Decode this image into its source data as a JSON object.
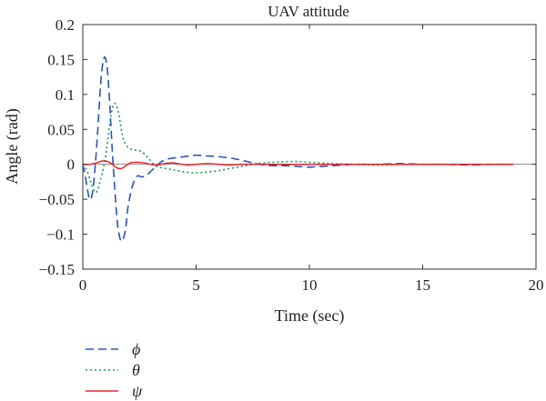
{
  "chart_data": {
    "type": "line",
    "title": "UAV attitude",
    "xlabel": "Time (sec)",
    "ylabel": "Angle (rad)",
    "xlim": [
      0,
      20
    ],
    "ylim": [
      -0.15,
      0.2
    ],
    "xticks": [
      0,
      5,
      10,
      15,
      20
    ],
    "xtick_labels": [
      "0",
      "5",
      "10",
      "15",
      "20"
    ],
    "yticks": [
      -0.15,
      -0.1,
      -0.05,
      0,
      0.05,
      0.1,
      0.15,
      0.2
    ],
    "ytick_labels": [
      "−0.15",
      "−0.1",
      "−0.05",
      "0",
      "0.05",
      "0.1",
      "0.15",
      "0.2"
    ],
    "grid": false,
    "legend_position": "below-left",
    "series": [
      {
        "name": "ϕ",
        "color": "#2a52be",
        "dash": "dashed",
        "x": [
          0,
          0.1,
          0.2,
          0.3,
          0.4,
          0.5,
          0.6,
          0.7,
          0.8,
          0.9,
          1.0,
          1.1,
          1.2,
          1.3,
          1.4,
          1.5,
          1.6,
          1.7,
          1.8,
          1.9,
          2.0,
          2.2,
          2.4,
          2.6,
          2.8,
          3.0,
          3.2,
          3.4,
          3.6,
          3.8,
          4.0,
          4.5,
          5.0,
          5.5,
          6.0,
          6.5,
          7.0,
          7.5,
          8.0,
          8.5,
          9.0,
          9.5,
          10.0,
          10.5,
          11.0,
          11.5,
          12.0,
          13.0,
          14.0,
          15.0,
          16.0,
          17.0,
          18.0,
          19.0
        ],
        "y": [
          0,
          -0.015,
          -0.035,
          -0.05,
          -0.045,
          -0.02,
          0.02,
          0.07,
          0.12,
          0.148,
          0.152,
          0.13,
          0.08,
          0.02,
          -0.03,
          -0.075,
          -0.1,
          -0.11,
          -0.105,
          -0.09,
          -0.06,
          -0.03,
          -0.017,
          -0.018,
          -0.016,
          -0.01,
          -0.004,
          0.002,
          0.006,
          0.008,
          0.009,
          0.011,
          0.013,
          0.012,
          0.011,
          0.009,
          0.006,
          0.002,
          -0.001,
          -0.002,
          -0.002,
          -0.003,
          -0.004,
          -0.003,
          -0.002,
          -0.001,
          0,
          0,
          0.001,
          0,
          0,
          -0.001,
          0,
          0
        ]
      },
      {
        "name": "θ",
        "color": "#1a9a5a",
        "dash": "dotted",
        "x": [
          0,
          0.2,
          0.4,
          0.6,
          0.8,
          1.0,
          1.1,
          1.2,
          1.3,
          1.4,
          1.5,
          1.6,
          1.7,
          1.8,
          2.0,
          2.2,
          2.4,
          2.6,
          2.8,
          3.0,
          3.2,
          3.5,
          4.0,
          4.5,
          5.0,
          5.5,
          6.0,
          6.5,
          7.0,
          7.5,
          8.0,
          8.5,
          9.0,
          9.5,
          10.0,
          10.5,
          11.0,
          12.0,
          13.0,
          14.0,
          15.0,
          16.0,
          17.0,
          18.0,
          19.0
        ],
        "y": [
          0,
          -0.01,
          -0.03,
          -0.04,
          -0.02,
          0.01,
          0.035,
          0.06,
          0.08,
          0.087,
          0.083,
          0.07,
          0.05,
          0.035,
          0.024,
          0.021,
          0.02,
          0.018,
          0.012,
          0.005,
          -0.002,
          -0.005,
          -0.008,
          -0.011,
          -0.012,
          -0.011,
          -0.009,
          -0.006,
          -0.003,
          0,
          0.002,
          0.003,
          0.004,
          0.004,
          0.003,
          0.002,
          0.001,
          0,
          -0.001,
          0,
          0,
          0,
          0,
          0,
          0
        ]
      },
      {
        "name": "ψ",
        "color": "#e8202a",
        "dash": "solid",
        "x": [
          0,
          0.3,
          0.6,
          0.9,
          1.1,
          1.3,
          1.5,
          1.7,
          1.9,
          2.1,
          2.4,
          2.7,
          3.0,
          3.3,
          3.6,
          3.9,
          4.2,
          4.6,
          5.0,
          5.5,
          6.0,
          6.5,
          7.0,
          8.0,
          9.0,
          10.0,
          12.0,
          14.0,
          16.0,
          18.0,
          19.0
        ],
        "y": [
          0,
          0,
          0.002,
          0.005,
          0.004,
          0,
          -0.005,
          -0.006,
          -0.002,
          0.002,
          0.003,
          0.002,
          0,
          -0.001,
          0.001,
          0.002,
          0.001,
          -0.001,
          0,
          0.001,
          0,
          -0.001,
          0,
          0,
          0,
          0,
          0,
          0,
          0,
          0,
          0
        ]
      }
    ]
  }
}
